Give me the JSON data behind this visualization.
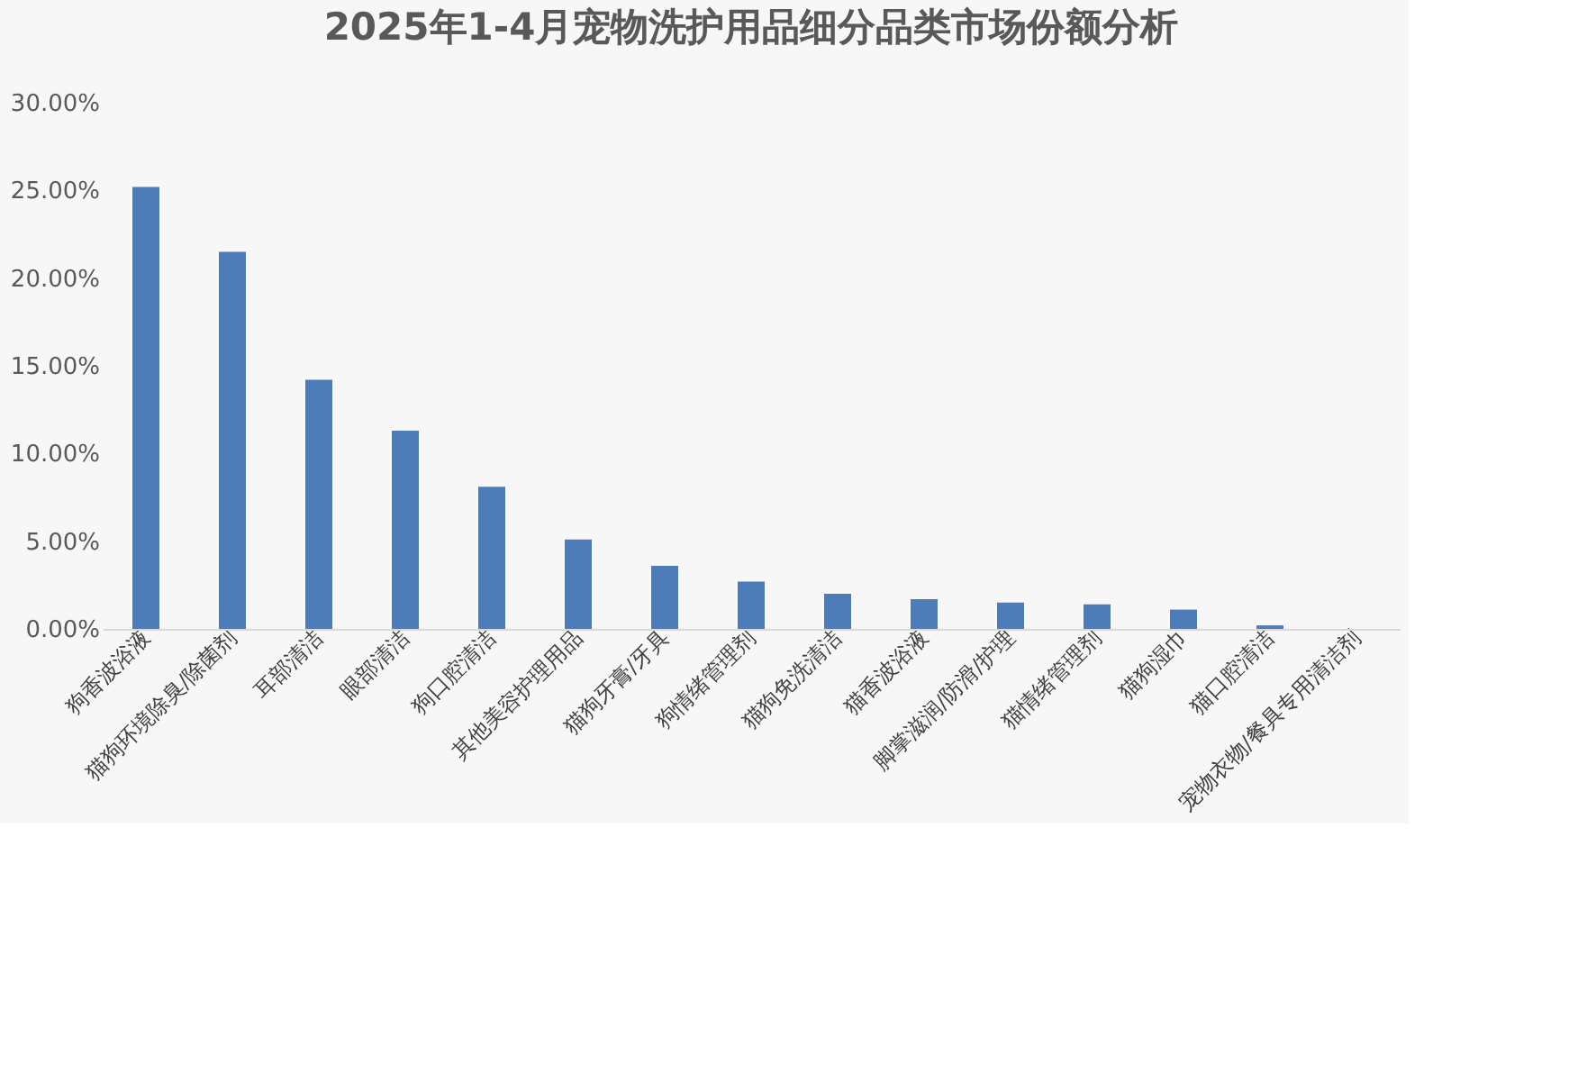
{
  "chart_data": {
    "type": "bar",
    "title": "2025年1-4月宠物洗护用品细分品类市场份额分析",
    "categories": [
      "狗香波浴液",
      "猫狗环境除臭/除菌剂",
      "耳部清洁",
      "眼部清洁",
      "狗口腔清洁",
      "其他美容护理用品",
      "猫狗牙膏/牙具",
      "狗情绪管理剂",
      "猫狗免洗清洁",
      "猫香波浴液",
      "脚掌滋润/防滑/护理",
      "猫情绪管理剂",
      "猫狗湿巾",
      "猫口腔清洁",
      "宠物衣物/餐具专用清洁剂"
    ],
    "values": [
      25.2,
      21.5,
      14.2,
      11.3,
      8.1,
      5.1,
      3.6,
      2.7,
      2.0,
      1.7,
      1.5,
      1.4,
      1.1,
      0.2,
      0.0
    ],
    "color": "#4e7cb9",
    "ylim": [
      0,
      30
    ],
    "yticks": [
      {
        "value": 0,
        "label": "0.00%"
      },
      {
        "value": 5,
        "label": "5.00%"
      },
      {
        "value": 10,
        "label": "10.00%"
      },
      {
        "value": 15,
        "label": "15.00%"
      },
      {
        "value": 20,
        "label": "20.00%"
      },
      {
        "value": 25,
        "label": "25.00%"
      },
      {
        "value": 30,
        "label": "30.00%"
      }
    ],
    "grid": false
  }
}
